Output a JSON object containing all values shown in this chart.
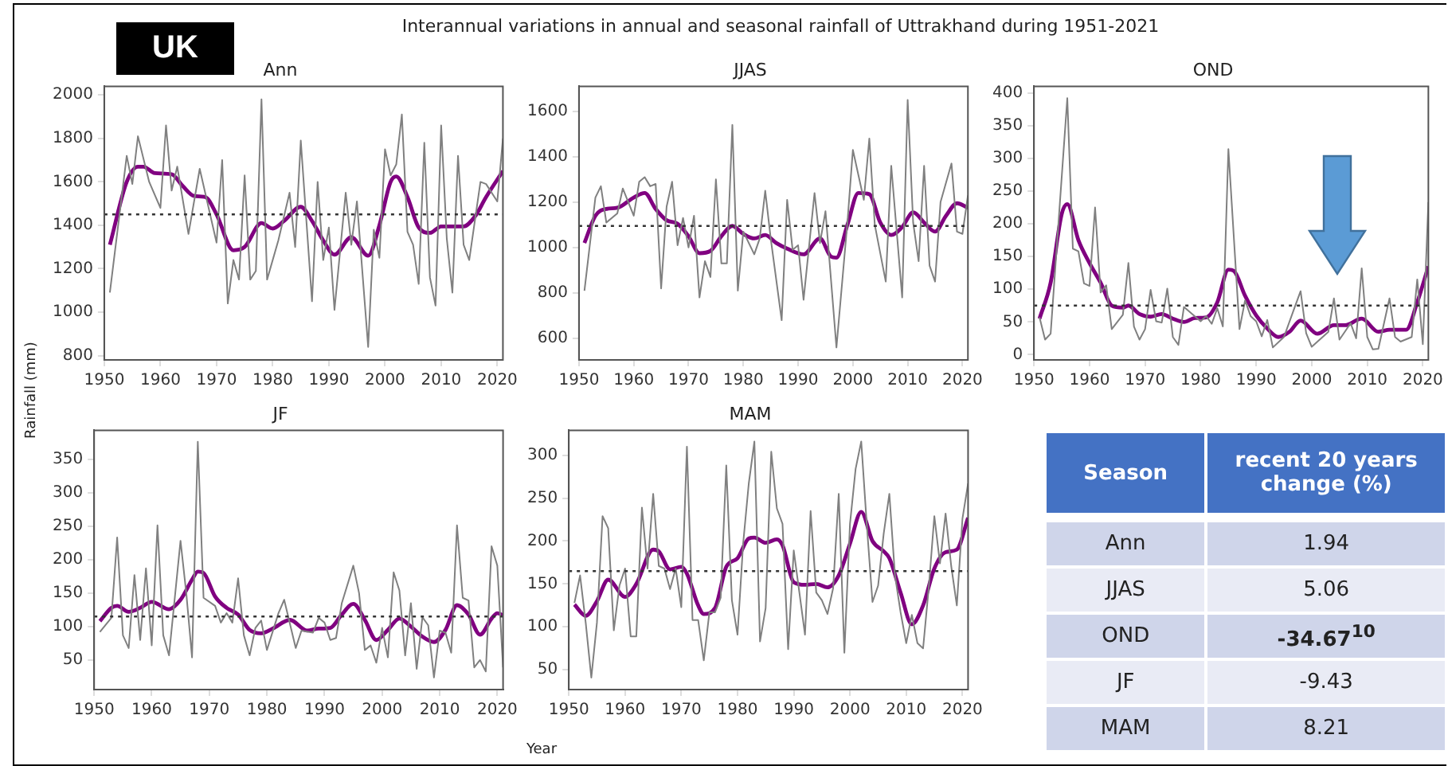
{
  "chart_data": [
    {
      "type": "line",
      "title": "Ann",
      "ylabel": "Rainfall (mm)",
      "annotations": [
        "Interannual variations in annual and seasonal rainfall of Uttrakhand during 1951-2021",
        "UK"
      ],
      "xlim": [
        1950,
        2021
      ],
      "xticks": [
        1950,
        1960,
        1970,
        1980,
        1990,
        2000,
        2010,
        2020
      ],
      "ylim": [
        780,
        2040
      ],
      "yticks": [
        800,
        1000,
        1200,
        1400,
        1600,
        1800,
        2000
      ],
      "legend": false,
      "marker": "none",
      "series": [
        {
          "color": "#808080",
          "x": [
            1951,
            1954,
            1955,
            1956,
            1958,
            1960,
            1961,
            1962,
            1963,
            1965,
            1967,
            1970,
            1971,
            1972,
            1973,
            1974,
            1975,
            1976,
            1977,
            1978,
            1979,
            1981,
            1983,
            1984,
            1985,
            1987,
            1988,
            1989,
            1990,
            1991,
            1993,
            1994,
            1995,
            1997,
            1998,
            1999,
            2000,
            2001,
            2002,
            2003,
            2004,
            2005,
            2006,
            2007,
            2008,
            2009,
            2010,
            2011,
            2012,
            2013,
            2014,
            2015,
            2017,
            2018,
            2020,
            2021
          ],
          "values": [
            1090,
            1720,
            1590,
            1810,
            1600,
            1480,
            1860,
            1560,
            1670,
            1360,
            1660,
            1320,
            1700,
            1040,
            1240,
            1150,
            1630,
            1150,
            1190,
            1980,
            1150,
            1330,
            1550,
            1300,
            1790,
            1050,
            1600,
            1240,
            1390,
            1010,
            1550,
            1310,
            1510,
            840,
            1380,
            1250,
            1750,
            1630,
            1680,
            1910,
            1370,
            1310,
            1130,
            1780,
            1160,
            1030,
            1860,
            1340,
            1090,
            1720,
            1310,
            1240,
            1600,
            1590,
            1510,
            1800
          ]
        },
        {
          "color": "#800080",
          "x": [
            1951,
            1954,
            1956,
            1957,
            1959,
            1962,
            1964,
            1966,
            1968,
            1970,
            1973,
            1975,
            1978,
            1980,
            1982,
            1985,
            1987,
            1989,
            1991,
            1994,
            1997,
            1999,
            2001,
            2002,
            2004,
            2006,
            2008,
            2010,
            2014,
            2016,
            2018,
            2021
          ],
          "values": [
            1310,
            1600,
            1670,
            1670,
            1640,
            1635,
            1580,
            1535,
            1530,
            1450,
            1285,
            1300,
            1410,
            1385,
            1420,
            1485,
            1420,
            1330,
            1265,
            1345,
            1260,
            1400,
            1600,
            1625,
            1530,
            1390,
            1365,
            1395,
            1395,
            1440,
            1530,
            1650
          ]
        }
      ],
      "ref_lines": [
        {
          "axis": "y",
          "value": 1450,
          "color": "#333333",
          "line_style": "dotted"
        }
      ]
    },
    {
      "type": "line",
      "title": "JJAS",
      "xlim": [
        1950,
        2021
      ],
      "xticks": [
        1950,
        1960,
        1970,
        1980,
        1990,
        2000,
        2010,
        2020
      ],
      "ylim": [
        505,
        1710
      ],
      "yticks": [
        600,
        800,
        1000,
        1200,
        1400,
        1600
      ],
      "legend": false,
      "marker": "none",
      "series": [
        {
          "color": "#808080",
          "x": [
            1951,
            1953,
            1954,
            1955,
            1957,
            1958,
            1960,
            1961,
            1962,
            1963,
            1964,
            1965,
            1966,
            1967,
            1968,
            1969,
            1970,
            1971,
            1972,
            1973,
            1974,
            1975,
            1976,
            1977,
            1978,
            1979,
            1980,
            1982,
            1983,
            1984,
            1985,
            1987,
            1988,
            1989,
            1990,
            1991,
            1993,
            1994,
            1995,
            1997,
            1999,
            2000,
            2002,
            2003,
            2004,
            2006,
            2007,
            2009,
            2010,
            2011,
            2012,
            2013,
            2014,
            2015,
            2016,
            2018,
            2019,
            2020,
            2021
          ],
          "values": [
            810,
            1220,
            1270,
            1110,
            1150,
            1260,
            1140,
            1290,
            1310,
            1270,
            1280,
            820,
            1180,
            1290,
            1010,
            1130,
            1000,
            1140,
            780,
            940,
            870,
            1300,
            930,
            930,
            1540,
            810,
            1070,
            970,
            1040,
            1250,
            1040,
            680,
            1210,
            990,
            1010,
            770,
            1240,
            1020,
            1160,
            560,
            1110,
            1430,
            1210,
            1480,
            1100,
            850,
            1360,
            780,
            1650,
            1110,
            940,
            1360,
            920,
            850,
            1200,
            1370,
            1070,
            1060,
            1230
          ]
        },
        {
          "color": "#800080",
          "x": [
            1951,
            1953,
            1955,
            1957,
            1960,
            1962,
            1964,
            1966,
            1968,
            1970,
            1972,
            1974,
            1976,
            1978,
            1980,
            1982,
            1984,
            1986,
            1988,
            1991,
            1994,
            1996,
            1997,
            1999,
            2001,
            2003,
            2005,
            2007,
            2009,
            2011,
            2013,
            2015,
            2017,
            2019,
            2021
          ],
          "values": [
            1020,
            1140,
            1170,
            1175,
            1220,
            1240,
            1170,
            1120,
            1105,
            1050,
            975,
            985,
            1050,
            1095,
            1060,
            1040,
            1055,
            1020,
            995,
            970,
            1040,
            960,
            955,
            1100,
            1240,
            1235,
            1110,
            1055,
            1090,
            1155,
            1110,
            1070,
            1140,
            1195,
            1175
          ]
        }
      ],
      "ref_lines": [
        {
          "axis": "y",
          "value": 1095,
          "color": "#333333",
          "line_style": "dotted"
        }
      ]
    },
    {
      "type": "line",
      "title": "OND",
      "xlim": [
        1950,
        2021
      ],
      "xticks": [
        1950,
        1960,
        1970,
        1980,
        1990,
        2000,
        2010,
        2020
      ],
      "ylim": [
        -8,
        410
      ],
      "yticks": [
        0,
        50,
        100,
        150,
        200,
        250,
        300,
        350,
        400
      ],
      "legend": false,
      "marker": "none",
      "series": [
        {
          "color": "#808080",
          "x": [
            1951,
            1952,
            1953,
            1956,
            1957,
            1958,
            1959,
            1960,
            1961,
            1962,
            1963,
            1964,
            1966,
            1967,
            1968,
            1969,
            1970,
            1971,
            1972,
            1973,
            1974,
            1975,
            1976,
            1977,
            1980,
            1981,
            1982,
            1983,
            1984,
            1985,
            1987,
            1988,
            1989,
            1990,
            1991,
            1992,
            1993,
            1995,
            1997,
            1998,
            1999,
            2000,
            2003,
            2004,
            2005,
            2007,
            2008,
            2009,
            2010,
            2011,
            2012,
            2014,
            2015,
            2016,
            2018,
            2019,
            2020,
            2021
          ],
          "values": [
            57,
            23,
            32,
            392,
            162,
            158,
            109,
            105,
            225,
            95,
            106,
            39,
            61,
            140,
            43,
            23,
            39,
            99,
            51,
            49,
            101,
            27,
            15,
            73,
            51,
            59,
            47,
            71,
            43,
            314,
            39,
            83,
            59,
            51,
            28,
            53,
            11,
            27,
            74,
            97,
            33,
            12,
            35,
            86,
            23,
            48,
            25,
            132,
            27,
            8,
            9,
            86,
            27,
            20,
            27,
            115,
            16,
            233
          ]
        },
        {
          "color": "#800080",
          "x": [
            1951,
            1953,
            1955,
            1956,
            1958,
            1960,
            1962,
            1964,
            1966,
            1967,
            1969,
            1971,
            1973,
            1975,
            1977,
            1979,
            1981,
            1983,
            1985,
            1986,
            1988,
            1990,
            1992,
            1994,
            1996,
            1998,
            2001,
            2004,
            2006,
            2009,
            2012,
            2014,
            2017,
            2019,
            2021
          ],
          "values": [
            55,
            110,
            215,
            230,
            175,
            140,
            110,
            75,
            72,
            75,
            62,
            58,
            62,
            55,
            50,
            56,
            57,
            80,
            130,
            128,
            90,
            60,
            40,
            27,
            35,
            52,
            32,
            45,
            45,
            55,
            35,
            38,
            38,
            80,
            135
          ]
        }
      ],
      "ref_lines": [
        {
          "axis": "y",
          "value": 75,
          "color": "#333333",
          "line_style": "dotted"
        }
      ]
    },
    {
      "type": "line",
      "title": "JF",
      "xlabel": "Year",
      "xlim": [
        1950,
        2021
      ],
      "xticks": [
        1950,
        1960,
        1970,
        1980,
        1990,
        2000,
        2010,
        2020
      ],
      "ylim": [
        6,
        393
      ],
      "yticks": [
        50,
        100,
        150,
        200,
        250,
        300,
        350
      ],
      "legend": false,
      "marker": "none",
      "series": [
        {
          "color": "#808080",
          "x": [
            1951,
            1953,
            1954,
            1955,
            1956,
            1957,
            1958,
            1959,
            1960,
            1961,
            1962,
            1963,
            1965,
            1966,
            1967,
            1968,
            1969,
            1971,
            1972,
            1973,
            1974,
            1975,
            1976,
            1977,
            1978,
            1979,
            1980,
            1982,
            1983,
            1985,
            1986,
            1988,
            1989,
            1990,
            1991,
            1992,
            1993,
            1995,
            1996,
            1997,
            1998,
            1999,
            2000,
            2001,
            2002,
            2003,
            2004,
            2005,
            2006,
            2007,
            2008,
            2009,
            2010,
            2011,
            2012,
            2013,
            2014,
            2015,
            2016,
            2017,
            2018,
            2019,
            2020,
            2021
          ],
          "values": [
            92,
            113,
            233,
            87,
            68,
            177,
            80,
            187,
            72,
            251,
            87,
            57,
            228,
            150,
            54,
            376,
            143,
            131,
            106,
            120,
            106,
            172,
            87,
            57,
            98,
            109,
            65,
            120,
            140,
            68,
            94,
            91,
            113,
            106,
            80,
            83,
            135,
            191,
            150,
            65,
            72,
            46,
            98,
            54,
            181,
            154,
            57,
            135,
            37,
            114,
            102,
            24,
            94,
            91,
            61,
            251,
            143,
            139,
            39,
            50,
            33,
            220,
            191,
            39
          ]
        },
        {
          "color": "#800080",
          "x": [
            1951,
            1953,
            1954,
            1956,
            1958,
            1960,
            1963,
            1965,
            1967,
            1968,
            1969,
            1971,
            1973,
            1975,
            1977,
            1979,
            1981,
            1984,
            1987,
            1989,
            1991,
            1993,
            1995,
            1997,
            1999,
            2001,
            2003,
            2005,
            2007,
            2009,
            2011,
            2013,
            2015,
            2017,
            2019,
            2020,
            2021
          ],
          "values": [
            108,
            128,
            131,
            122,
            128,
            137,
            126,
            140,
            170,
            182,
            180,
            145,
            128,
            118,
            95,
            90,
            97,
            110,
            94,
            97,
            98,
            118,
            134,
            110,
            80,
            95,
            112,
            100,
            85,
            77,
            95,
            132,
            118,
            88,
            112,
            120,
            117
          ]
        }
      ],
      "ref_lines": [
        {
          "axis": "y",
          "value": 115,
          "color": "#333333",
          "line_style": "dotted"
        }
      ]
    },
    {
      "type": "line",
      "title": "MAM",
      "xlim": [
        1950,
        2021
      ],
      "xticks": [
        1950,
        1960,
        1970,
        1980,
        1990,
        2000,
        2010,
        2020
      ],
      "ylim": [
        27,
        329
      ],
      "yticks": [
        50,
        100,
        150,
        200,
        250,
        300
      ],
      "legend": false,
      "marker": "none",
      "series": [
        {
          "color": "#808080",
          "x": [
            1951,
            1952,
            1953,
            1954,
            1955,
            1956,
            1957,
            1958,
            1959,
            1960,
            1961,
            1962,
            1963,
            1964,
            1965,
            1966,
            1967,
            1968,
            1969,
            1970,
            1971,
            1972,
            1973,
            1974,
            1975,
            1976,
            1977,
            1978,
            1979,
            1980,
            1981,
            1982,
            1983,
            1984,
            1985,
            1986,
            1987,
            1988,
            1989,
            1990,
            1991,
            1992,
            1993,
            1994,
            1995,
            1996,
            1997,
            1998,
            1999,
            2000,
            2001,
            2002,
            2003,
            2004,
            2005,
            2006,
            2007,
            2008,
            2009,
            2010,
            2011,
            2012,
            2013,
            2014,
            2015,
            2016,
            2017,
            2018,
            2019,
            2020,
            2021
          ],
          "values": [
            128,
            160,
            105,
            41,
            105,
            229,
            215,
            96,
            148,
            168,
            89,
            89,
            239,
            168,
            255,
            171,
            168,
            144,
            168,
            123,
            310,
            108,
            108,
            61,
            117,
            117,
            134,
            288,
            131,
            91,
            197,
            267,
            316,
            83,
            122,
            304,
            238,
            220,
            74,
            189,
            140,
            91,
            235,
            140,
            131,
            115,
            145,
            255,
            70,
            220,
            284,
            316,
            218,
            129,
            148,
            209,
            255,
            160,
            117,
            81,
            114,
            81,
            75,
            145,
            229,
            174,
            232,
            171,
            125,
            226,
            267
          ]
        },
        {
          "color": "#800080",
          "x": [
            1951,
            1953,
            1955,
            1957,
            1960,
            1962,
            1965,
            1966,
            1968,
            1970,
            1971,
            1973,
            1974,
            1976,
            1978,
            1980,
            1982,
            1983,
            1985,
            1987,
            1988,
            1990,
            1992,
            1994,
            1996,
            1998,
            2000,
            2002,
            2004,
            2006,
            2007,
            2009,
            2011,
            2013,
            2015,
            2017,
            2019,
            2021
          ],
          "values": [
            126,
            113,
            130,
            155,
            135,
            150,
            190,
            188,
            167,
            170,
            162,
            125,
            115,
            122,
            170,
            180,
            203,
            204,
            198,
            202,
            195,
            152,
            149,
            150,
            146,
            160,
            197,
            234,
            200,
            188,
            180,
            140,
            103,
            125,
            168,
            187,
            190,
            227
          ]
        }
      ],
      "ref_lines": [
        {
          "axis": "y",
          "value": 165,
          "color": "#333333",
          "line_style": "dotted"
        }
      ]
    },
    {
      "type": "other",
      "xlabel": "Season",
      "ylabel": "recent 20 years change (%)",
      "categories": [
        "Ann",
        "JJAS",
        "OND",
        "JF",
        "MAM"
      ],
      "value_labels": [
        "1.94",
        "5.06",
        "-34.67$^{10}$",
        "-9.43",
        "8.21"
      ]
    }
  ]
}
